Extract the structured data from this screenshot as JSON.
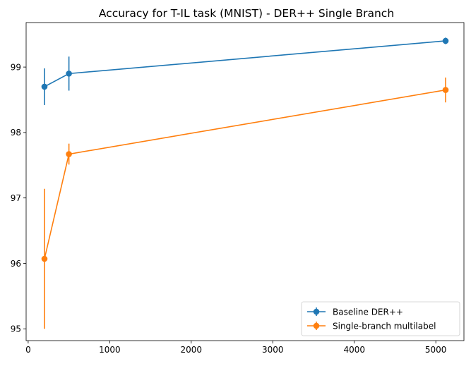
{
  "chart_data": {
    "type": "line",
    "title": "Accuracy for T-IL task (MNIST) - DER++ Single Branch",
    "xlabel": "",
    "ylabel": "",
    "xlim": [
      -25,
      5345
    ],
    "ylim": [
      94.82,
      99.68
    ],
    "xticks": [
      0,
      1000,
      2000,
      3000,
      4000,
      5000
    ],
    "xtick_labels": [
      "0",
      "1000",
      "2000",
      "3000",
      "4000",
      "5000"
    ],
    "yticks": [
      95,
      96,
      97,
      98,
      99
    ],
    "ytick_labels": [
      "95",
      "96",
      "97",
      "98",
      "99"
    ],
    "grid": false,
    "legend": "lower-right",
    "series": [
      {
        "name": "Baseline DER++",
        "color": "#1f77b4",
        "x": [
          200,
          500,
          5120
        ],
        "y": [
          98.7,
          98.9,
          99.4
        ],
        "yerr": [
          0.28,
          0.26,
          0.05
        ]
      },
      {
        "name": "Single-branch multilabel",
        "color": "#ff7f0e",
        "x": [
          200,
          500,
          5120
        ],
        "y": [
          96.07,
          97.67,
          98.65
        ],
        "yerr": [
          1.07,
          0.16,
          0.19
        ]
      }
    ]
  }
}
